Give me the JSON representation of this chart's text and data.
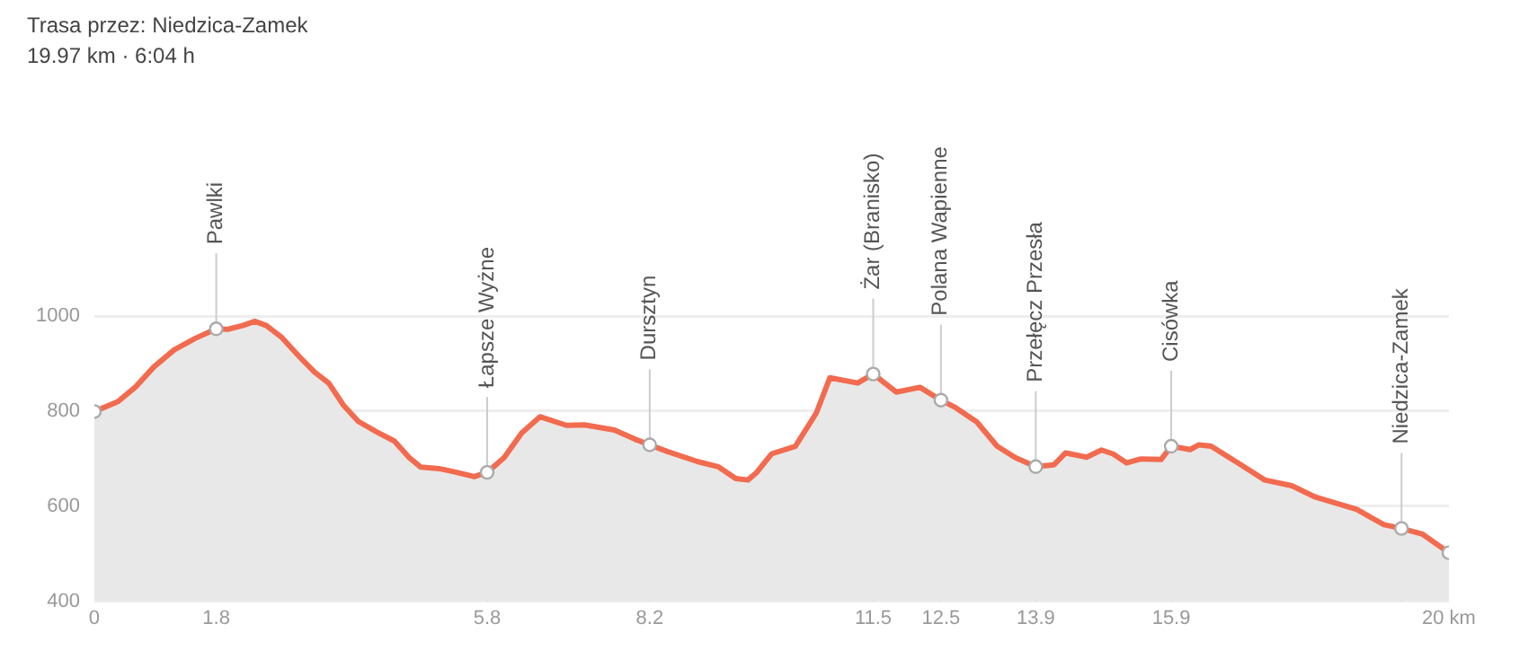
{
  "chart_data": {
    "type": "area",
    "title": "Trasa przez: Niedzica-Zamek",
    "subtitle": "19.97 km · 6:04 h",
    "xlim": [
      0,
      20
    ],
    "xticks": [
      0,
      1.8,
      5.8,
      8.2,
      11.5,
      12.5,
      13.9,
      15.9,
      {
        "value": 20,
        "label": "20 km"
      }
    ],
    "ylim": [
      400,
      1000
    ],
    "yticks": [
      400,
      600,
      800,
      1000
    ],
    "grid": "y",
    "legend": false,
    "series": [
      {
        "color": "#f26b4f",
        "x": [
          0,
          0.35,
          0.61,
          0.88,
          1.18,
          1.49,
          1.8,
          1.97,
          2.19,
          2.37,
          2.54,
          2.76,
          3.03,
          3.25,
          3.46,
          3.68,
          3.9,
          4.17,
          4.43,
          4.65,
          4.82,
          5.09,
          5.35,
          5.61,
          5.8,
          6.05,
          6.31,
          6.58,
          6.97,
          7.24,
          7.68,
          7.98,
          8.2,
          8.46,
          8.9,
          9.21,
          9.47,
          9.65,
          9.78,
          10.0,
          10.35,
          10.66,
          10.86,
          11.27,
          11.5,
          11.84,
          12.19,
          12.5,
          12.72,
          13.03,
          13.33,
          13.6,
          13.9,
          14.17,
          14.34,
          14.65,
          14.87,
          15.04,
          15.24,
          15.44,
          15.75,
          15.9,
          16.18,
          16.31,
          16.49,
          16.93,
          17.28,
          17.68,
          18.03,
          18.64,
          19.04,
          19.3,
          19.61,
          20
        ],
        "values": [
          799,
          820,
          851,
          893,
          929,
          953,
          973,
          972,
          980,
          989,
          980,
          956,
          914,
          882,
          859,
          812,
          778,
          756,
          737,
          702,
          682,
          679,
          671,
          662,
          671,
          702,
          754,
          788,
          770,
          771,
          760,
          741,
          729,
          715,
          694,
          683,
          658,
          655,
          671,
          710,
          726,
          796,
          870,
          859,
          878,
          840,
          850,
          823,
          807,
          777,
          726,
          702,
          683,
          687,
          712,
          703,
          718,
          710,
          691,
          699,
          698,
          726,
          719,
          729,
          726,
          687,
          655,
          643,
          619,
          593,
          561,
          553,
          541,
          502
        ]
      },
      {
        "type": "scatter",
        "color": "#aaaaaa",
        "marker": "circle",
        "x": [
          0,
          1.8,
          5.8,
          8.2,
          11.5,
          12.5,
          13.9,
          15.9,
          19.3,
          20
        ],
        "values": [
          799,
          973,
          671,
          729,
          878,
          823,
          683,
          726,
          553,
          502
        ]
      }
    ],
    "ref_lines": [
      {
        "axis": "x",
        "value": 1.8,
        "label": "Pawlki"
      },
      {
        "axis": "x",
        "value": 5.8,
        "label": "Łapsze Wyżne"
      },
      {
        "axis": "x",
        "value": 8.2,
        "label": "Dursztyn"
      },
      {
        "axis": "x",
        "value": 11.5,
        "label": "Żar (Branisko)"
      },
      {
        "axis": "x",
        "value": 12.5,
        "label": "Polana Wapienne"
      },
      {
        "axis": "x",
        "value": 13.9,
        "label": "Przełęcz Przesła"
      },
      {
        "axis": "x",
        "value": 15.9,
        "label": "Cisówka"
      },
      {
        "axis": "x",
        "value": 19.3,
        "label": "Niedzica-Zamek"
      }
    ]
  }
}
